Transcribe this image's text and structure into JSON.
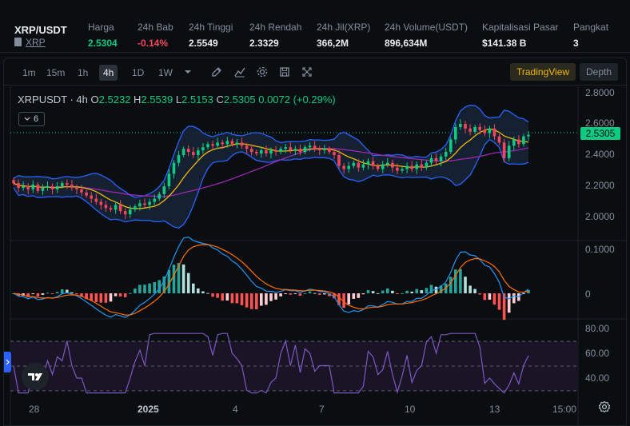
{
  "header": {
    "pair": "XRP/USDT",
    "sub_label": "XRP",
    "stats": [
      {
        "label": "Harga",
        "value": "2.5304",
        "tone": "green"
      },
      {
        "label": "24h Bab",
        "value": "-0.14%",
        "tone": "red"
      },
      {
        "label": "24h Tinggi",
        "value": "2.5549",
        "tone": "normal"
      },
      {
        "label": "24h Rendah",
        "value": "2.3329",
        "tone": "normal"
      },
      {
        "label": "24h Jil(XRP)",
        "value": "366,2M",
        "tone": "normal"
      },
      {
        "label": "24h Volume(USDT)",
        "value": "896,634M",
        "tone": "normal"
      },
      {
        "label": "Kapitalisasi Pasar",
        "value": "$141.38 B",
        "tone": "normal"
      },
      {
        "label": "Pangkat",
        "value": "3",
        "tone": "normal"
      }
    ]
  },
  "toolbar": {
    "timeframes": [
      "1m",
      "15m",
      "1h",
      "4h",
      "1D",
      "1W"
    ],
    "active_timeframe": "4h",
    "icons": [
      "chevron-down-icon",
      "draw-icon",
      "indicator-icon",
      "settings-icon",
      "save-icon",
      "fullscreen-icon"
    ],
    "tradingview_label": "TradingView",
    "depth_label": "Depth"
  },
  "legend": {
    "symbol": "XRPUSDT · 4h",
    "open_label": "O",
    "open": "2.5232",
    "high_label": "H",
    "high": "2.5539",
    "low_label": "L",
    "low": "2.5153",
    "close_label": "C",
    "close": "2.5305",
    "change": "0.0072 (+0.29%)",
    "indicator_count": "6"
  },
  "current_price": "2.5305",
  "colors": {
    "up": "#0ecb81",
    "down": "#f6465d",
    "bollinger": "#2962ff",
    "ma_fast": "#f0b90b",
    "ma_slow": "#9c27b0",
    "rsi": "#7e57c2",
    "macd": "#2196f3",
    "signal": "#ff6d00"
  },
  "chart_data": {
    "type": "candlestick",
    "main_axis": {
      "ticks": [
        "2.8000",
        "2.6000",
        "2.4000",
        "2.2000",
        "2.0000"
      ],
      "ylim": [
        1.9,
        2.85
      ]
    },
    "macd_axis": {
      "ticks": [
        "0.1000",
        "0"
      ]
    },
    "rsi_axis": {
      "ticks": [
        "80.00",
        "60.00",
        "40.00"
      ],
      "bands": [
        70,
        50,
        30
      ]
    },
    "x_ticks": [
      "28",
      "2025",
      "4",
      "7",
      "10",
      "13",
      "15:00"
    ],
    "candles_close": [
      2.22,
      2.19,
      2.2,
      2.18,
      2.21,
      2.17,
      2.19,
      2.2,
      2.18,
      2.2,
      2.22,
      2.21,
      2.19,
      2.18,
      2.16,
      2.14,
      2.12,
      2.1,
      2.08,
      2.06,
      2.05,
      2.08,
      2.04,
      2.02,
      2.05,
      2.07,
      2.09,
      2.08,
      2.1,
      2.12,
      2.15,
      2.2,
      2.28,
      2.35,
      2.4,
      2.44,
      2.42,
      2.4,
      2.43,
      2.45,
      2.47,
      2.46,
      2.48,
      2.47,
      2.49,
      2.47,
      2.48,
      2.46,
      2.44,
      2.42,
      2.41,
      2.43,
      2.41,
      2.43,
      2.42,
      2.44,
      2.45,
      2.43,
      2.44,
      2.42,
      2.45,
      2.46,
      2.44,
      2.43,
      2.44,
      2.42,
      2.4,
      2.33,
      2.31,
      2.33,
      2.35,
      2.32,
      2.34,
      2.36,
      2.33,
      2.31,
      2.34,
      2.35,
      2.32,
      2.3,
      2.31,
      2.33,
      2.31,
      2.34,
      2.32,
      2.35,
      2.38,
      2.36,
      2.39,
      2.42,
      2.5,
      2.58,
      2.6,
      2.57,
      2.55,
      2.58,
      2.56,
      2.54,
      2.57,
      2.52,
      2.48,
      2.38,
      2.46,
      2.5,
      2.47,
      2.52,
      2.53
    ]
  }
}
